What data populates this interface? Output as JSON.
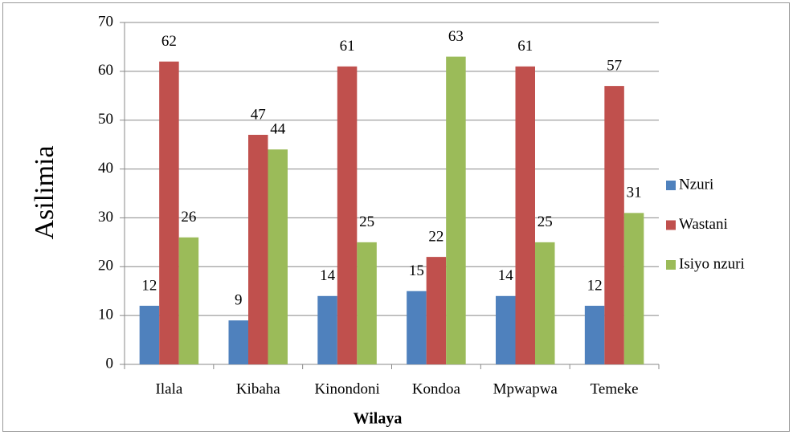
{
  "chart_data": {
    "type": "bar",
    "x_label": "Wilaya",
    "y_label": "Asilimia",
    "categories": [
      "Ilala",
      "Kibaha",
      "Kinondoni",
      "Kondoa",
      "Mpwapwa",
      "Temeke"
    ],
    "series": [
      {
        "name": "Nzuri",
        "color": "#4f81bd",
        "values": [
          12,
          9,
          14,
          15,
          14,
          12
        ]
      },
      {
        "name": "Wastani",
        "color": "#c0504d",
        "values": [
          62,
          47,
          61,
          22,
          61,
          57
        ]
      },
      {
        "name": "Isiyo nzuri",
        "color": "#9bbb59",
        "values": [
          26,
          44,
          25,
          63,
          25,
          31
        ]
      }
    ],
    "ylim": [
      0,
      70
    ],
    "yticks": [
      0,
      10,
      20,
      30,
      40,
      50,
      60,
      70
    ],
    "grid": true,
    "legend": "right"
  }
}
